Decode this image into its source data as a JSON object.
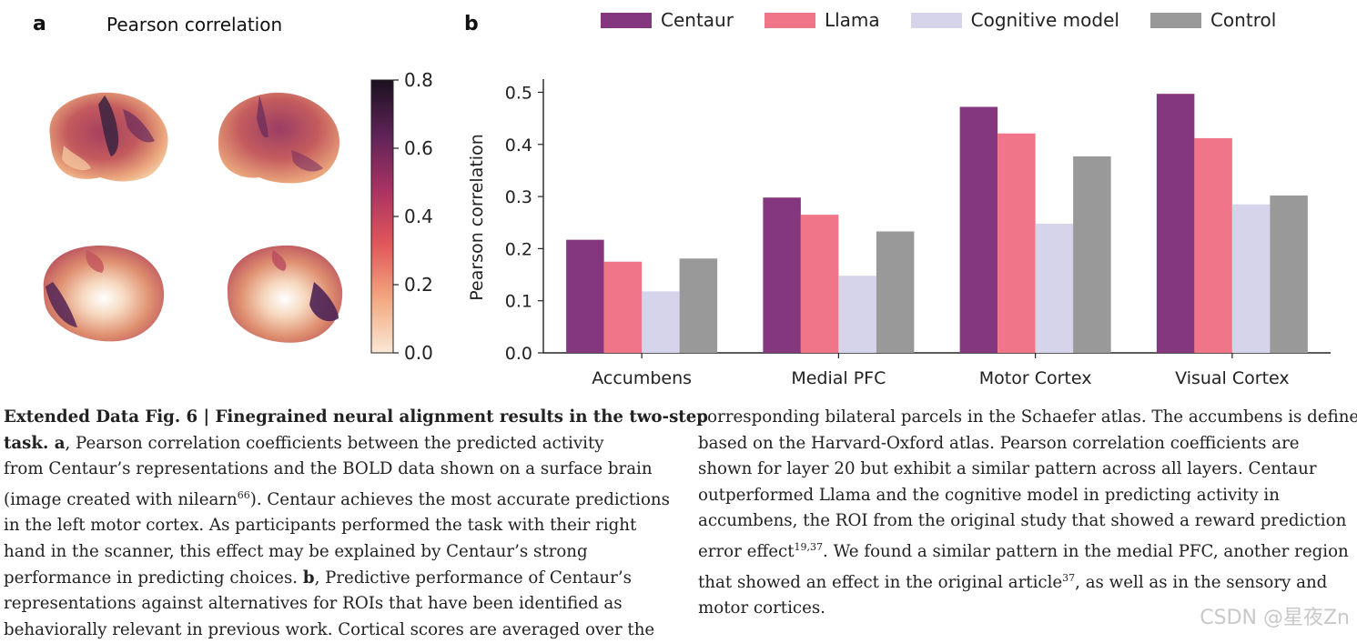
{
  "panel_a": {
    "letter": "a",
    "title": "Pearson correlation",
    "colorbar": {
      "ticks": [
        "0.0",
        "0.2",
        "0.4",
        "0.6",
        "0.8"
      ],
      "min": 0.0,
      "max": 0.8
    }
  },
  "panel_b": {
    "letter": "b"
  },
  "chart_data": {
    "type": "bar",
    "categories": [
      "Accumbens",
      "Medial PFC",
      "Motor Cortex",
      "Visual Cortex"
    ],
    "series": [
      {
        "name": "Centaur",
        "color": "#84377f",
        "values": [
          0.217,
          0.298,
          0.472,
          0.497
        ]
      },
      {
        "name": "Llama",
        "color": "#f07588",
        "values": [
          0.175,
          0.265,
          0.421,
          0.412
        ]
      },
      {
        "name": "Cognitive model",
        "color": "#d6d4ea",
        "values": [
          0.118,
          0.148,
          0.248,
          0.285
        ]
      },
      {
        "name": "Control",
        "color": "#999999",
        "values": [
          0.181,
          0.233,
          0.377,
          0.302
        ]
      }
    ],
    "ylabel": "Pearson correlation",
    "xlabel": "",
    "ylim": [
      0,
      0.52
    ],
    "yticks": [
      0.0,
      0.1,
      0.2,
      0.3,
      0.4,
      0.5
    ],
    "ytick_labels": [
      "0.0",
      "0.1",
      "0.2",
      "0.3",
      "0.4",
      "0.5"
    ],
    "legend_position": "top"
  },
  "caption": {
    "heading": "Extended Data Fig. 6 | Finegrained neural alignment results in the two-step",
    "left_lines": [
      {
        "bold": "task. a",
        "text": ", Pearson correlation coefficients between the predicted activity"
      },
      {
        "text": "from Centaur’s representations and the BOLD data shown on a surface brain"
      },
      {
        "text": "(image created with nilearn",
        "sup": "66",
        "tail": "). Centaur achieves the most accurate predictions"
      },
      {
        "text": "in the left motor cortex. As participants performed the task with their right"
      },
      {
        "text": "hand in the scanner, this effect may be explained by Centaur’s strong"
      },
      {
        "text": "performance in predicting choices. ",
        "bold2": "b",
        "tail": ", Predictive performance of Centaur’s"
      },
      {
        "text": "representations against alternatives for ROIs that have been identified as"
      },
      {
        "text": "behaviorally relevant in previous work. Cortical scores are averaged over the"
      }
    ],
    "right_lines": [
      {
        "text": "corresponding bilateral parcels in the Schaefer atlas. The accumbens is defined"
      },
      {
        "text": "based on the Harvard-Oxford atlas. Pearson correlation coefficients are"
      },
      {
        "text": "shown for layer 20 but exhibit a similar pattern across all layers. Centaur"
      },
      {
        "text": "outperformed Llama and the cognitive model in predicting activity in"
      },
      {
        "text": "accumbens, the ROI from the original study that showed a reward prediction"
      },
      {
        "text": "error effect",
        "sup": "19,37",
        "tail": ". We found a similar pattern in the medial PFC, another region"
      },
      {
        "text": "that showed an effect in the original article",
        "sup": "37",
        "tail": ", as well as in the sensory and"
      },
      {
        "text": "motor cortices."
      }
    ]
  },
  "watermark": "CSDN @星夜Zn"
}
